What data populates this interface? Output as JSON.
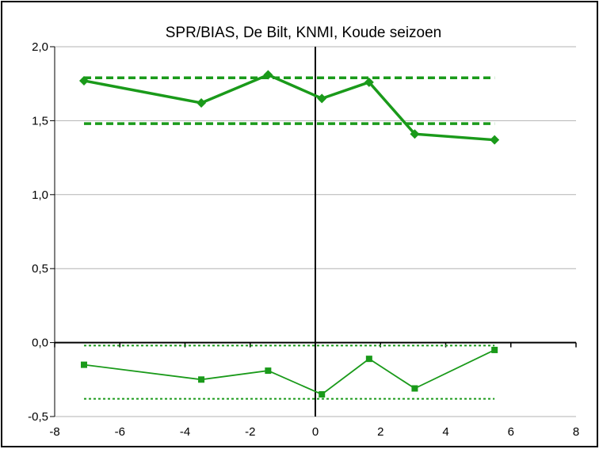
{
  "chart_data": {
    "type": "line",
    "title": "SPR/BIAS, De Bilt, KNMI, Koude seizoen",
    "xlabel": "",
    "ylabel": "",
    "xlim": [
      -8,
      8
    ],
    "ylim": [
      -0.5,
      2.0
    ],
    "x_ticks": [
      -8,
      -6,
      -4,
      -2,
      0,
      2,
      4,
      6,
      8
    ],
    "x_tick_labels": [
      "-8",
      "-6",
      "-4",
      "-2",
      "0",
      "2",
      "4",
      "6",
      "8"
    ],
    "y_ticks": [
      -0.5,
      0.0,
      0.5,
      1.0,
      1.5,
      2.0
    ],
    "y_tick_labels": [
      "-0,5",
      "0,0",
      "0,5",
      "1,0",
      "1,5",
      "2,0"
    ],
    "grid": "horizontal",
    "legend": "none",
    "series": [
      {
        "marker": "diamond",
        "line": "solid",
        "color": "#1a9a1a",
        "x": [
          -7.1,
          -3.5,
          -1.45,
          0.2,
          1.65,
          3.05,
          5.5
        ],
        "y": [
          1.77,
          1.62,
          1.81,
          1.65,
          1.76,
          1.41,
          1.37
        ]
      },
      {
        "marker": "square",
        "line": "solid",
        "color": "#1a9a1a",
        "x": [
          -7.1,
          -3.5,
          -1.45,
          0.2,
          1.65,
          3.05,
          5.5
        ],
        "y": [
          -0.15,
          -0.25,
          -0.19,
          -0.35,
          -0.11,
          -0.31,
          -0.05
        ]
      },
      {
        "line": "dashed",
        "color": "#1a9a1a",
        "x": [
          -7.1,
          5.5
        ],
        "y": [
          1.79,
          1.79
        ]
      },
      {
        "line": "dashed",
        "color": "#1a9a1a",
        "x": [
          -7.1,
          5.5
        ],
        "y": [
          1.48,
          1.48
        ]
      },
      {
        "line": "dotted",
        "color": "#1a9a1a",
        "x": [
          -7.1,
          5.5
        ],
        "y": [
          -0.02,
          -0.02
        ]
      },
      {
        "line": "dotted",
        "color": "#1a9a1a",
        "x": [
          -7.1,
          5.5
        ],
        "y": [
          -0.38,
          -0.38
        ]
      }
    ]
  }
}
